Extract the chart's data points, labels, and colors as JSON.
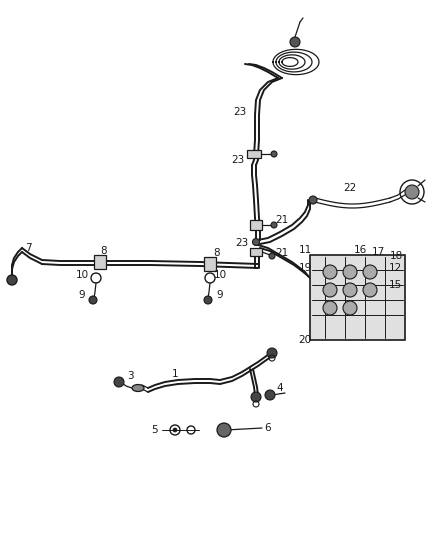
{
  "background_color": "#ffffff",
  "line_color": "#1a1a1a",
  "text_color": "#1a1a1a",
  "fig_width": 4.38,
  "fig_height": 5.33,
  "dpi": 100
}
